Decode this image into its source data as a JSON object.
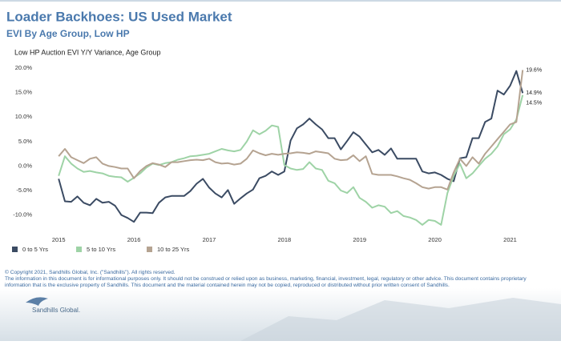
{
  "header": {
    "title": "Loader Backhoes:  US Used Market",
    "subtitle": "EVI By Age Group, Low HP"
  },
  "footer": {
    "copyright": "© Copyright 2021, Sandhills Global, Inc. (\"Sandhills\"). All rights reserved.",
    "disclaimer": [
      "The information in this document is for informational purposes only.  It should not be construed or relied upon as business, marketing, financial, investment, legal, regulatory or other advice. This document contains proprietary",
      "information that is the exclusive property of Sandhills. This document and the material contained herein may not be copied, reproduced or distributed without prior written consent of Sandhills."
    ]
  },
  "logo": {
    "text": "Sandhills Global."
  },
  "chart_data": {
    "type": "line",
    "title": "Low HP Auction EVI Y/Y Variance, Age Group",
    "x": [
      2015,
      2015.083,
      2015.167,
      2015.25,
      2015.333,
      2015.417,
      2015.5,
      2015.583,
      2015.667,
      2015.75,
      2015.833,
      2015.917,
      2016,
      2016.083,
      2016.167,
      2016.25,
      2016.333,
      2016.417,
      2016.5,
      2016.583,
      2016.667,
      2016.75,
      2016.833,
      2016.917,
      2017,
      2017.083,
      2017.167,
      2017.25,
      2017.333,
      2017.417,
      2017.5,
      2017.583,
      2017.667,
      2017.75,
      2017.833,
      2017.917,
      2018,
      2018.083,
      2018.167,
      2018.25,
      2018.333,
      2018.417,
      2018.5,
      2018.583,
      2018.667,
      2018.75,
      2018.833,
      2018.917,
      2019,
      2019.083,
      2019.167,
      2019.25,
      2019.333,
      2019.417,
      2019.5,
      2019.583,
      2019.667,
      2019.75,
      2019.833,
      2019.917,
      2020,
      2020.083,
      2020.167,
      2020.25,
      2020.333,
      2020.417,
      2020.5,
      2020.583,
      2020.667,
      2020.75,
      2020.833,
      2020.917,
      2021,
      2021.083,
      2021.167
    ],
    "xlim": [
      2014.7,
      2021.25
    ],
    "xticks": [
      2015,
      2016,
      2017,
      2018,
      2019,
      2020,
      2021
    ],
    "ylim": [
      -13,
      20.5
    ],
    "yticks": [
      {
        "value": -10,
        "label": "-10.0%"
      },
      {
        "value": -5,
        "label": "-5.0%"
      },
      {
        "value": 0,
        "label": "0.0%"
      },
      {
        "value": 5,
        "label": "5.0%"
      },
      {
        "value": 10,
        "label": "10.0%"
      },
      {
        "value": 15,
        "label": "15.0%"
      },
      {
        "value": 20,
        "label": "20.0%"
      }
    ],
    "grid": false,
    "legend": "bottom-left",
    "series": [
      {
        "name": "0 to 5 Yrs",
        "color": "#3b4b63",
        "values": [
          -2.6,
          -7.2,
          -7.3,
          -6.2,
          -7.5,
          -8,
          -6.7,
          -7.5,
          -7.3,
          -8.1,
          -10,
          -10.6,
          -11.4,
          -9.5,
          -9.5,
          -9.6,
          -7.5,
          -6.4,
          -6.1,
          -6.1,
          -6.1,
          -5.1,
          -3.6,
          -2.6,
          -4.4,
          -5.6,
          -6.4,
          -4.9,
          -7.7,
          -6.6,
          -5.6,
          -4.8,
          -2.5,
          -2,
          -1.1,
          -1.8,
          -1.1,
          5.2,
          7.7,
          8.5,
          9.7,
          8.5,
          7.5,
          5.7,
          5.7,
          3.4,
          5.1,
          6.9,
          6,
          4.4,
          2.8,
          3.3,
          2.3,
          3.6,
          1.5,
          1.5,
          1.5,
          1.5,
          -1.1,
          -1.5,
          -1.3,
          -1.8,
          -2.6,
          -3.1,
          1.6,
          1.8,
          5.7,
          5.7,
          9,
          9.7,
          15.4,
          14.6,
          16.4,
          19.4,
          14.9
        ],
        "value_labels": [
          null,
          null,
          null,
          null,
          null,
          null,
          null,
          null,
          null,
          null,
          null,
          null,
          null,
          null,
          null,
          null,
          null,
          null,
          null,
          null,
          null,
          null,
          null,
          null,
          null,
          null,
          null,
          null,
          null,
          null,
          null,
          null,
          null,
          null,
          null,
          null,
          null,
          null,
          null,
          null,
          null,
          null,
          null,
          null,
          null,
          null,
          null,
          null,
          null,
          null,
          null,
          null,
          null,
          null,
          null,
          null,
          null,
          null,
          null,
          null,
          null,
          null,
          null,
          null,
          null,
          null,
          null,
          null,
          null,
          null,
          null,
          null,
          null,
          null,
          "14.9%"
        ]
      },
      {
        "name": "5 to 10 Yrs",
        "color": "#9ed3a6",
        "values": [
          -2,
          2,
          0.5,
          -0.5,
          -1.2,
          -1,
          -1.3,
          -1.5,
          -2,
          -2.2,
          -2.3,
          -3.2,
          -2.4,
          -1.5,
          -0.3,
          0.5,
          0.2,
          0.6,
          0.8,
          1.3,
          1.6,
          2,
          2.1,
          2.3,
          2.5,
          3,
          3.5,
          3.2,
          3,
          3.3,
          5,
          7.3,
          6.5,
          7.2,
          8.3,
          8,
          0.2,
          -0.5,
          -0.8,
          -0.6,
          0.8,
          -0.5,
          -0.8,
          -3,
          -3.5,
          -5,
          -5.5,
          -4.3,
          -6.5,
          -7.3,
          -8.5,
          -8,
          -8.3,
          -9.6,
          -9.2,
          -10.2,
          -10.5,
          -11,
          -12,
          -11,
          -11.2,
          -12,
          -5.5,
          -2,
          0.5,
          -2.5,
          -1.5,
          0,
          1.5,
          2.5,
          4,
          6.5,
          7.5,
          9.5,
          14.5
        ],
        "value_labels": [
          null,
          null,
          null,
          null,
          null,
          null,
          null,
          null,
          null,
          null,
          null,
          null,
          null,
          null,
          null,
          null,
          null,
          null,
          null,
          null,
          null,
          null,
          null,
          null,
          null,
          null,
          null,
          null,
          null,
          null,
          null,
          null,
          null,
          null,
          null,
          null,
          null,
          null,
          null,
          null,
          null,
          null,
          null,
          null,
          null,
          null,
          null,
          null,
          null,
          null,
          null,
          null,
          null,
          null,
          null,
          null,
          null,
          null,
          null,
          null,
          null,
          null,
          null,
          null,
          null,
          null,
          null,
          null,
          null,
          null,
          null,
          null,
          null,
          null,
          "14.5%"
        ]
      },
      {
        "name": "10 to 25 Yrs",
        "color": "#b5a391",
        "values": [
          2,
          3.5,
          1.8,
          1.2,
          0.6,
          1.5,
          1.8,
          0.5,
          0,
          -0.2,
          -0.5,
          -0.5,
          -2.5,
          -1,
          0,
          0.6,
          0.3,
          -0.2,
          0.8,
          0.8,
          1,
          1.2,
          1.3,
          1.2,
          1.5,
          0.8,
          0.5,
          0.6,
          0.3,
          0.5,
          1.5,
          3.2,
          2.6,
          2.2,
          2.5,
          2.3,
          2.5,
          2.6,
          2.8,
          2.7,
          2.5,
          3,
          2.8,
          2.6,
          1.5,
          1.2,
          1.3,
          2.2,
          1,
          2,
          -1.6,
          -1.8,
          -1.8,
          -1.8,
          -2.1,
          -2.5,
          -2.8,
          -3.5,
          -4.3,
          -4.6,
          -4.3,
          -4.3,
          -4.8,
          -1.3,
          1.5,
          0,
          1.8,
          0.5,
          2.5,
          4,
          5.5,
          7,
          8.5,
          9,
          19.6
        ],
        "value_labels": [
          null,
          null,
          null,
          null,
          null,
          null,
          null,
          null,
          null,
          null,
          null,
          null,
          null,
          null,
          null,
          null,
          null,
          null,
          null,
          null,
          null,
          null,
          null,
          null,
          null,
          null,
          null,
          null,
          null,
          null,
          null,
          null,
          null,
          null,
          null,
          null,
          null,
          null,
          null,
          null,
          null,
          null,
          null,
          null,
          null,
          null,
          null,
          null,
          null,
          null,
          null,
          null,
          null,
          null,
          null,
          null,
          null,
          null,
          null,
          null,
          null,
          null,
          null,
          null,
          null,
          null,
          null,
          null,
          null,
          null,
          null,
          null,
          null,
          null,
          "19.6%"
        ]
      }
    ]
  }
}
